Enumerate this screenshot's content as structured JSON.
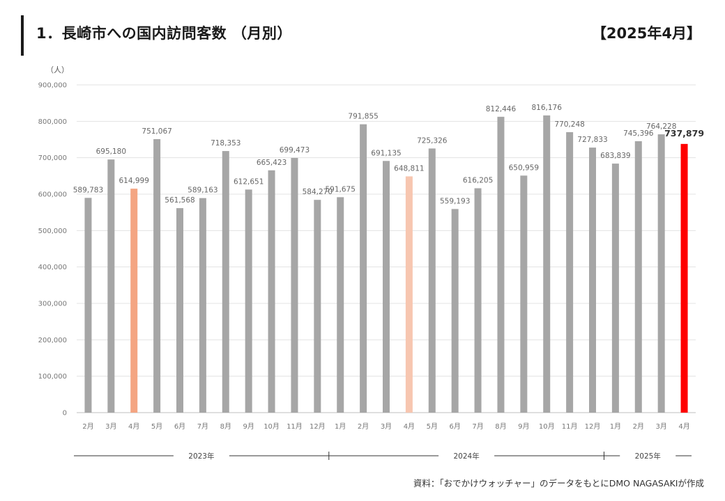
{
  "header": {
    "title": "1．長崎市への国内訪問客数 （月別）",
    "period": "【2025年4月】"
  },
  "footer": {
    "source": "資料：「おでかけウォッチャー」のデータをもとにDMO NAGASAKIが作成"
  },
  "chart_data": {
    "type": "bar",
    "unit_label": "（人）",
    "ylim": [
      0,
      900000
    ],
    "y_ticks": [
      "0",
      "100,000",
      "200,000",
      "300,000",
      "400,000",
      "500,000",
      "600,000",
      "700,000",
      "800,000",
      "900,000"
    ],
    "grid": true,
    "categories": [
      "2月",
      "3月",
      "4月",
      "5月",
      "6月",
      "7月",
      "8月",
      "9月",
      "10月",
      "11月",
      "12月",
      "1月",
      "2月",
      "3月",
      "4月",
      "5月",
      "6月",
      "7月",
      "8月",
      "9月",
      "10月",
      "11月",
      "12月",
      "1月",
      "2月",
      "3月",
      "4月"
    ],
    "values": [
      589783,
      695180,
      614999,
      751067,
      561568,
      589163,
      718353,
      612651,
      665423,
      699473,
      584270,
      591675,
      791855,
      691135,
      648811,
      725326,
      559193,
      616205,
      812446,
      650959,
      816176,
      770248,
      727833,
      683839,
      745396,
      764228,
      737879
    ],
    "value_labels": [
      "589,783",
      "695,180",
      "614,999",
      "751,067",
      "561,568",
      "589,163",
      "718,353",
      "612,651",
      "665,423",
      "699,473",
      "584,270",
      "591,675",
      "791,855",
      "691,135",
      "648,811",
      "725,326",
      "559,193",
      "616,205",
      "812,446",
      "650,959",
      "816,176",
      "770,248",
      "727,833",
      "683,839",
      "745,396",
      "764,228",
      "737,879"
    ],
    "bar_colors": [
      "#a6a6a6",
      "#a6a6a6",
      "#f4a582",
      "#a6a6a6",
      "#a6a6a6",
      "#a6a6a6",
      "#a6a6a6",
      "#a6a6a6",
      "#a6a6a6",
      "#a6a6a6",
      "#a6a6a6",
      "#a6a6a6",
      "#a6a6a6",
      "#a6a6a6",
      "#f7c6b0",
      "#a6a6a6",
      "#a6a6a6",
      "#a6a6a6",
      "#a6a6a6",
      "#a6a6a6",
      "#a6a6a6",
      "#a6a6a6",
      "#a6a6a6",
      "#a6a6a6",
      "#a6a6a6",
      "#a6a6a6",
      "#ff0000"
    ],
    "highlight_index": 26,
    "year_groups": [
      {
        "label": "2023年",
        "start": 0,
        "end": 10
      },
      {
        "label": "2024年",
        "start": 11,
        "end": 22
      },
      {
        "label": "2025年",
        "start": 23,
        "end": 26
      }
    ]
  }
}
